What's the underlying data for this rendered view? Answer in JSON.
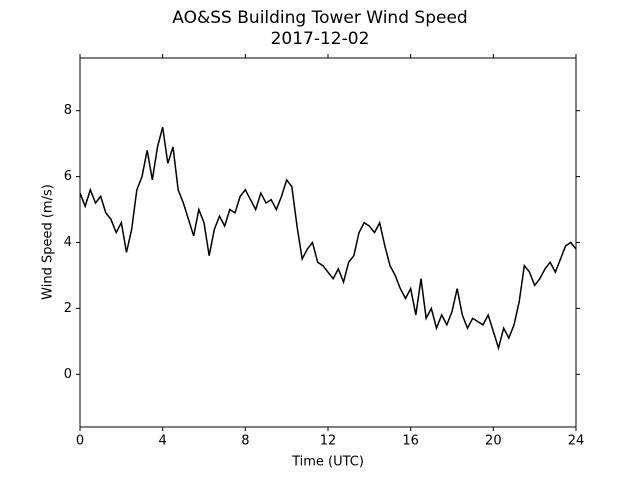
{
  "chart_data": {
    "type": "line",
    "title": "AO&SS Building Tower Wind Speed",
    "subtitle": "2017-12-02",
    "x_label": "Time (UTC)",
    "y_label": "Wind Speed (m/s)",
    "x": [
      0,
      0.25,
      0.5,
      0.75,
      1,
      1.25,
      1.5,
      1.75,
      2,
      2.25,
      2.5,
      2.75,
      3,
      3.25,
      3.5,
      3.75,
      4,
      4.25,
      4.5,
      4.75,
      5,
      5.25,
      5.5,
      5.75,
      6,
      6.25,
      6.5,
      6.75,
      7,
      7.25,
      7.5,
      7.75,
      8,
      8.25,
      8.5,
      8.75,
      9,
      9.25,
      9.5,
      9.75,
      10,
      10.25,
      10.5,
      10.75,
      11,
      11.25,
      11.5,
      11.75,
      12,
      12.25,
      12.5,
      12.75,
      13,
      13.25,
      13.5,
      13.75,
      14,
      14.25,
      14.5,
      14.75,
      15,
      15.25,
      15.5,
      15.75,
      16,
      16.25,
      16.5,
      16.75,
      17,
      17.25,
      17.5,
      17.75,
      18,
      18.25,
      18.5,
      18.75,
      19,
      19.25,
      19.5,
      19.75,
      20,
      20.25,
      20.5,
      20.75,
      21,
      21.25,
      21.5,
      21.75,
      22,
      22.25,
      22.5,
      22.75,
      23,
      23.25,
      23.5,
      23.75,
      24
    ],
    "series": [
      {
        "color": "#000000",
        "values": [
          5.5,
          5.1,
          5.6,
          5.2,
          5.4,
          4.9,
          4.7,
          4.3,
          4.6,
          3.7,
          4.4,
          5.6,
          6.0,
          6.8,
          5.9,
          6.9,
          7.5,
          6.4,
          6.9,
          5.6,
          5.2,
          4.7,
          4.2,
          5.0,
          4.6,
          3.6,
          4.4,
          4.8,
          4.5,
          5.0,
          4.9,
          5.4,
          5.6,
          5.3,
          5.0,
          5.5,
          5.2,
          5.3,
          5.0,
          5.4,
          5.9,
          5.7,
          4.5,
          3.5,
          3.8,
          4.0,
          3.4,
          3.3,
          3.1,
          2.9,
          3.2,
          2.8,
          3.4,
          3.6,
          4.3,
          4.6,
          4.5,
          4.3,
          4.6,
          3.9,
          3.3,
          3.0,
          2.6,
          2.3,
          2.6,
          1.8,
          2.9,
          1.7,
          2.0,
          1.4,
          1.8,
          1.5,
          1.9,
          2.6,
          1.8,
          1.4,
          1.7,
          1.6,
          1.5,
          1.8,
          1.3,
          0.8,
          1.4,
          1.1,
          1.5,
          2.2,
          3.3,
          3.1,
          2.7,
          2.9,
          3.2,
          3.4,
          3.1,
          3.5,
          3.9,
          4.0,
          3.8
        ]
      }
    ],
    "xlim": [
      0,
      24
    ],
    "xticks": [
      0,
      4,
      8,
      12,
      16,
      20,
      24
    ],
    "ylim": [
      -1.6,
      9.6
    ],
    "yticks": [
      0,
      2,
      4,
      6,
      8
    ]
  }
}
